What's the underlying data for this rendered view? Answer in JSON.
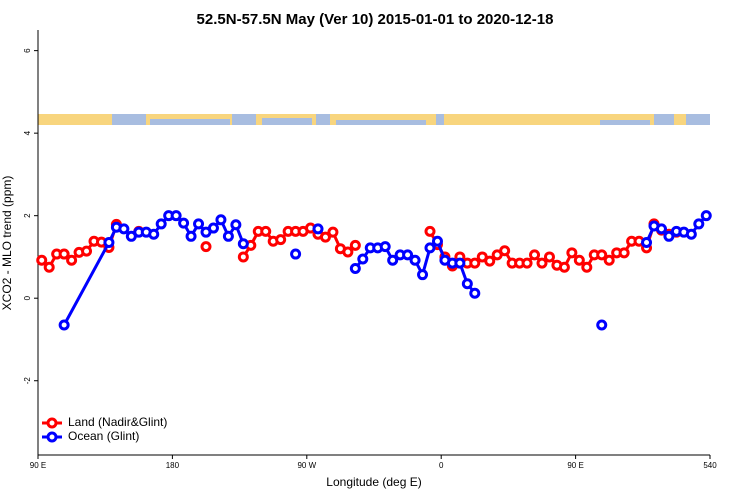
{
  "chart_data": {
    "type": "line",
    "title": "52.5N-57.5N May (Ver 10)   2015-01-01 to 2020-12-18",
    "x_label": "Longitude (deg E)",
    "y_label": "XCO2 - MLO trend (ppm)",
    "xlim": [
      90,
      540
    ],
    "ylim": [
      -3.8,
      6.5
    ],
    "xticks": [
      {
        "value": 90,
        "label": "90 E"
      },
      180,
      {
        "value": 270,
        "label": "90 W"
      },
      {
        "value": 360,
        "label": "0"
      },
      {
        "value": 450,
        "label": "90 E"
      },
      540
    ],
    "yticks": [
      -2,
      0,
      2,
      4,
      6
    ],
    "legend": "bottomleft",
    "series": [
      {
        "name": "Land (Nadir&Glint)",
        "color": "#ff0000",
        "x": [
          92.5,
          97.5,
          102.5,
          107.5,
          112.5,
          117.5,
          122.5,
          127.5,
          132.5,
          137.5,
          142.5,
          147.5,
          157.5,
          162.5,
          202.5,
          207.5,
          227.5,
          232.5,
          237.5,
          242.5,
          247.5,
          252.5,
          257.5,
          262.5,
          267.5,
          272.5,
          277.5,
          282.5,
          287.5,
          292.5,
          297.5,
          302.5,
          307.5,
          352.5,
          357.5,
          362.5,
          367.5,
          372.5,
          377.5,
          382.5,
          387.5,
          392.5,
          397.5,
          402.5,
          407.5,
          412.5,
          417.5,
          422.5,
          427.5,
          432.5,
          437.5,
          442.5,
          447.5,
          452.5,
          457.5,
          462.5,
          467.5,
          472.5,
          477.5,
          482.5,
          487.5,
          492.5,
          497.5,
          502.5,
          507.5,
          512.5,
          517.5
        ],
        "values": [
          0.92,
          0.75,
          1.07,
          1.07,
          0.92,
          1.11,
          1.14,
          1.38,
          1.36,
          1.23,
          1.79,
          null,
          1.62,
          null,
          1.25,
          null,
          1.0,
          1.28,
          1.62,
          1.62,
          1.38,
          1.42,
          1.62,
          1.62,
          1.62,
          1.7,
          1.55,
          1.48,
          1.6,
          1.2,
          1.12,
          1.28,
          null,
          1.62,
          1.3,
          1.0,
          0.78,
          1.0,
          0.85,
          0.85,
          1.0,
          0.9,
          1.05,
          1.15,
          0.85,
          0.85,
          0.85,
          1.05,
          0.85,
          1.0,
          0.8,
          0.75,
          1.1,
          0.92,
          0.75,
          1.05,
          1.05,
          0.92,
          1.1,
          1.1,
          1.38,
          1.38,
          1.22,
          1.8,
          1.65,
          1.55,
          1.6
        ]
      },
      {
        "name": "Ocean (Glint)",
        "color": "#0000ff",
        "x": [
          107.5,
          137.5,
          142.5,
          147.5,
          152.5,
          157.5,
          162.5,
          167.5,
          172.5,
          177.5,
          182.5,
          187.5,
          192.5,
          197.5,
          202.5,
          207.5,
          212.5,
          217.5,
          222.5,
          227.5,
          232.5,
          262.5,
          267.5,
          277.5,
          282.5,
          302.5,
          307.5,
          312.5,
          317.5,
          322.5,
          327.5,
          332.5,
          337.5,
          342.5,
          347.5,
          352.5,
          357.5,
          362.5,
          367.5,
          372.5,
          377.5,
          382.5,
          387.5,
          467.5,
          472.5,
          497.5,
          502.5,
          507.5,
          512.5,
          517.5,
          522.5,
          527.5,
          532.5,
          537.5
        ],
        "values": [
          -0.65,
          1.35,
          1.72,
          1.68,
          1.5,
          1.6,
          1.6,
          1.55,
          1.8,
          2.0,
          2.0,
          1.82,
          1.5,
          1.8,
          1.6,
          1.7,
          1.9,
          1.5,
          1.78,
          1.32,
          null,
          1.07,
          null,
          1.68,
          null,
          0.72,
          0.95,
          1.22,
          1.22,
          1.25,
          0.92,
          1.05,
          1.05,
          0.92,
          0.57,
          1.22,
          1.38,
          0.92,
          0.85,
          0.85,
          0.35,
          0.12,
          null,
          -0.65,
          null,
          1.35,
          1.75,
          1.68,
          1.5,
          1.62,
          1.6,
          1.55,
          1.8,
          2.0
        ]
      }
    ]
  }
}
